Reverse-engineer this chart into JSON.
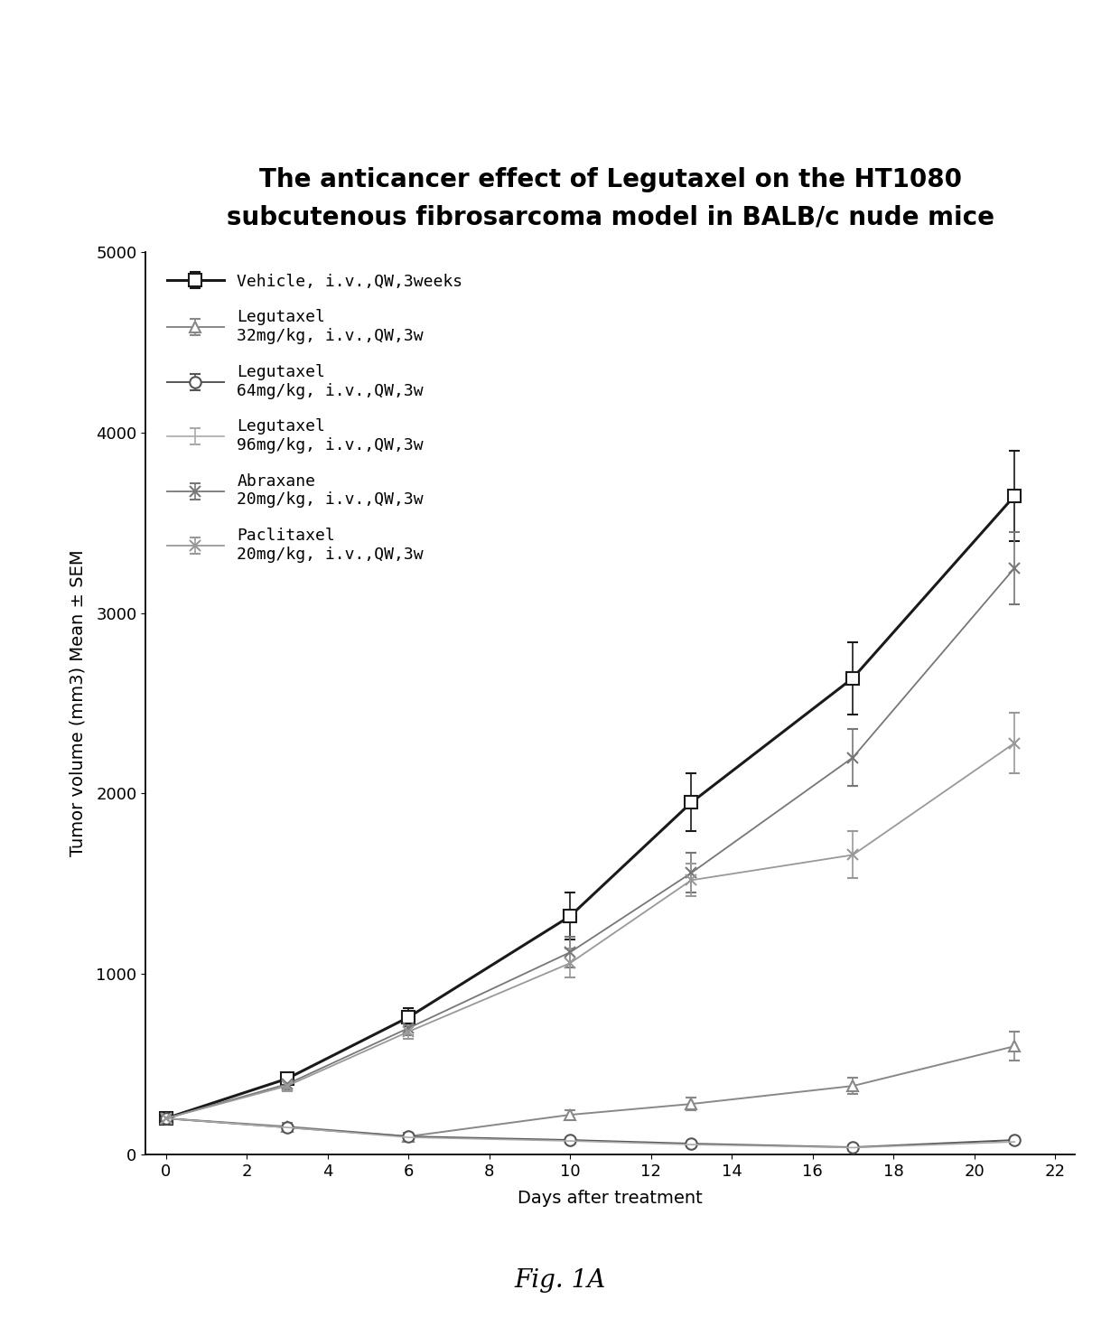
{
  "title": "The anticancer effect of Legutaxel on the HT1080\nsubcutenous fibrosarcoma model in BALB/c nude mice",
  "xlabel": "Days after treatment",
  "ylabel": "Tumor volume (mm3) Mean ± SEM",
  "xlim": [
    -0.5,
    22.5
  ],
  "ylim": [
    0,
    5000
  ],
  "xticks": [
    0,
    2,
    4,
    6,
    8,
    10,
    12,
    14,
    16,
    18,
    20,
    22
  ],
  "yticks": [
    0,
    1000,
    2000,
    3000,
    4000,
    5000
  ],
  "days": [
    0,
    3,
    6,
    10,
    13,
    17,
    21
  ],
  "series": [
    {
      "label": "Vehicle, i.v.,QW,3weeks",
      "color": "#1a1a1a",
      "linestyle": "-",
      "marker": "s",
      "marker_facecolor": "white",
      "marker_edgecolor": "#1a1a1a",
      "linewidth": 2.2,
      "markersize": 10,
      "values": [
        200,
        420,
        760,
        1320,
        1950,
        2640,
        3650
      ],
      "errors": [
        15,
        30,
        50,
        130,
        160,
        200,
        250
      ]
    },
    {
      "label": "Legutaxel\n32mg/kg, i.v.,QW,3w",
      "color": "#888888",
      "linestyle": "-",
      "marker": "^",
      "marker_facecolor": "white",
      "marker_edgecolor": "#888888",
      "linewidth": 1.4,
      "markersize": 9,
      "values": [
        200,
        155,
        100,
        220,
        280,
        380,
        600
      ],
      "errors": [
        15,
        20,
        18,
        25,
        35,
        45,
        80
      ]
    },
    {
      "label": "Legutaxel\n64mg/kg, i.v.,QW,3w",
      "color": "#555555",
      "linestyle": "-",
      "marker": "o",
      "marker_facecolor": "white",
      "marker_edgecolor": "#555555",
      "linewidth": 1.4,
      "markersize": 9,
      "values": [
        200,
        150,
        100,
        80,
        60,
        40,
        80
      ],
      "errors": [
        15,
        15,
        12,
        10,
        8,
        6,
        12
      ]
    },
    {
      "label": "Legutaxel\n96mg/kg, i.v.,QW,3w",
      "color": "#aaaaaa",
      "linestyle": "-",
      "marker": "none",
      "marker_facecolor": "white",
      "marker_edgecolor": "#aaaaaa",
      "linewidth": 1.2,
      "markersize": 7,
      "values": [
        200,
        150,
        95,
        75,
        55,
        38,
        70
      ],
      "errors": [
        15,
        15,
        10,
        8,
        7,
        5,
        10
      ]
    },
    {
      "label": "Abraxane\n20mg/kg, i.v.,QW,3w",
      "color": "#777777",
      "linestyle": "-",
      "marker": "x",
      "marker_facecolor": "#777777",
      "marker_edgecolor": "#777777",
      "linewidth": 1.3,
      "markersize": 9,
      "values": [
        200,
        390,
        700,
        1120,
        1560,
        2200,
        3250
      ],
      "errors": [
        15,
        28,
        40,
        85,
        110,
        160,
        200
      ]
    },
    {
      "label": "Paclitaxel\n20mg/kg, i.v.,QW,3w",
      "color": "#999999",
      "linestyle": "-",
      "marker": "x",
      "marker_facecolor": "#999999",
      "marker_edgecolor": "#999999",
      "linewidth": 1.3,
      "markersize": 9,
      "values": [
        200,
        380,
        680,
        1060,
        1520,
        1660,
        2280
      ],
      "errors": [
        15,
        28,
        38,
        80,
        90,
        130,
        170
      ]
    }
  ],
  "figcaption": "Fig. 1A",
  "background_color": "#ffffff",
  "title_fontsize": 20,
  "axis_fontsize": 14,
  "tick_fontsize": 13,
  "legend_fontsize": 13,
  "caption_fontsize": 20
}
